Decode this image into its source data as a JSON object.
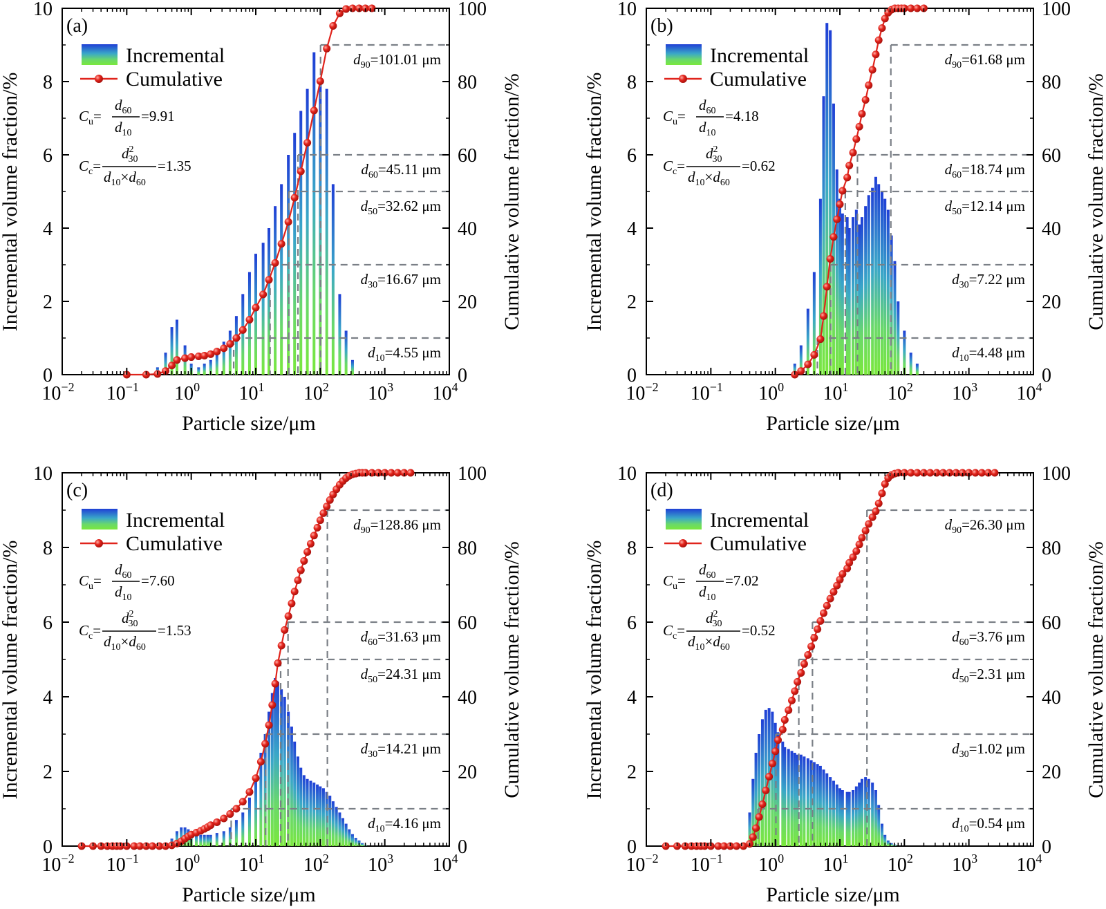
{
  "legend": {
    "incremental": "Incremental",
    "cumulative": "Cumulative"
  },
  "colors": {
    "bar_top": "#2448d8",
    "bar_bottom": "#72e63a",
    "cumulative": "#e0241c",
    "guide": "#7a7f86"
  },
  "axis_labels": {
    "x": "Particle size/μm",
    "y_left": "Incremental volume fraction/%",
    "y_right": "Cumulative volume fraction/%"
  },
  "chart_data": [
    {
      "panel": "(a)",
      "type": "bar+line",
      "xscale": "log",
      "xlim": [
        0.01,
        10000
      ],
      "ylim_left": [
        0,
        10
      ],
      "ylim_right": [
        0,
        100
      ],
      "xticks": [
        "10",
        "10",
        "10",
        "10",
        "10",
        "10",
        "10"
      ],
      "xtick_exps": [
        "−2",
        "−1",
        "0",
        "1",
        "2",
        "3",
        "4"
      ],
      "yticks_left": [
        "0",
        "2",
        "4",
        "6",
        "8",
        "10"
      ],
      "yticks_right": [
        "0",
        "20",
        "40",
        "60",
        "80",
        "100"
      ],
      "x_range_um": [
        0.1,
        700
      ],
      "incremental": {
        "x_um": [
          0.2,
          0.3,
          0.4,
          0.5,
          0.6,
          0.8,
          1.0,
          1.3,
          1.6,
          2.0,
          2.5,
          3.2,
          4.0,
          5.0,
          6.3,
          8.0,
          10,
          13,
          16,
          20,
          25,
          32,
          40,
          50,
          63,
          80,
          100,
          126,
          158,
          200,
          251,
          316
        ],
        "values": [
          0.05,
          0.2,
          0.6,
          1.3,
          1.5,
          0.8,
          0.3,
          0.2,
          0.3,
          0.4,
          0.6,
          0.9,
          1.2,
          1.6,
          2.2,
          2.8,
          3.3,
          3.6,
          4.0,
          4.6,
          5.2,
          6.0,
          6.6,
          7.2,
          7.8,
          8.8,
          8.0,
          7.8,
          5.2,
          2.2,
          1.2,
          0.4
        ]
      },
      "cumulative": {
        "x_um": [
          0.1,
          0.2,
          0.3,
          0.4,
          0.5,
          0.6,
          0.8,
          1.0,
          1.3,
          1.6,
          2.0,
          2.5,
          3.2,
          4.0,
          5.0,
          6.3,
          8.0,
          10,
          13,
          16,
          20,
          25,
          32,
          40,
          50,
          63,
          80,
          100,
          126,
          158,
          200,
          251,
          316,
          400,
          500,
          630
        ],
        "values": [
          0,
          0,
          0.2,
          1.0,
          2.5,
          4.0,
          4.5,
          4.8,
          5.0,
          5.2,
          5.6,
          6.3,
          7.2,
          8.4,
          10.0,
          12.2,
          15.0,
          18.3,
          21.9,
          25.9,
          30.5,
          35.7,
          41.7,
          48.3,
          55.5,
          63.3,
          72.1,
          80.1,
          89.0,
          95.2,
          98.6,
          99.8,
          100,
          100,
          100,
          100
        ]
      },
      "guides": [
        {
          "label_main": "d",
          "label_sub": "90",
          "label_rest": "=101.01 μm",
          "y": 90,
          "x_um": 101.01
        },
        {
          "label_main": "d",
          "label_sub": "60",
          "label_rest": "=45.11 μm",
          "y": 60,
          "x_um": 45.11
        },
        {
          "label_main": "d",
          "label_sub": "50",
          "label_rest": "=32.62 μm",
          "y": 50,
          "x_um": 32.62
        },
        {
          "label_main": "d",
          "label_sub": "30",
          "label_rest": "=16.67 μm",
          "y": 30,
          "x_um": 16.67
        },
        {
          "label_main": "d",
          "label_sub": "10",
          "label_rest": "=4.55 μm",
          "y": 10,
          "x_um": 4.55
        }
      ],
      "cu_value": "=9.91",
      "cc_value": "=1.35"
    },
    {
      "panel": "(b)",
      "type": "bar+line",
      "xscale": "log",
      "xlim": [
        0.01,
        10000
      ],
      "ylim_left": [
        0,
        10
      ],
      "ylim_right": [
        0,
        100
      ],
      "xticks": [
        "10",
        "10",
        "10",
        "10",
        "10",
        "10",
        "10"
      ],
      "xtick_exps": [
        "−2",
        "−1",
        "0",
        "1",
        "2",
        "3",
        "4"
      ],
      "yticks_left": [
        "0",
        "2",
        "4",
        "6",
        "8",
        "10"
      ],
      "yticks_right": [
        "0",
        "20",
        "40",
        "60",
        "80",
        "100"
      ],
      "incremental": {
        "x_um": [
          2.0,
          2.5,
          3.2,
          4.0,
          5.0,
          5.6,
          6.3,
          7.1,
          8.0,
          9.0,
          10,
          11,
          13,
          14,
          16,
          18,
          20,
          22,
          25,
          28,
          32,
          36,
          40,
          45,
          50,
          56,
          63,
          71,
          80,
          100,
          126,
          158
        ],
        "values": [
          0.3,
          0.8,
          1.8,
          2.8,
          4.8,
          7.6,
          9.6,
          9.4,
          7.4,
          5.6,
          4.8,
          4.4,
          4.3,
          4.0,
          4.3,
          4.5,
          4.1,
          4.3,
          4.6,
          4.9,
          5.1,
          5.4,
          5.2,
          5.0,
          4.8,
          4.5,
          3.8,
          3.1,
          2.0,
          1.2,
          0.6,
          0.3
        ]
      },
      "cumulative": {
        "x_um": [
          2.0,
          2.5,
          3.2,
          4.0,
          5.0,
          5.6,
          6.3,
          7.1,
          8.0,
          9.0,
          10,
          11,
          13,
          14,
          16,
          18,
          20,
          22,
          25,
          28,
          32,
          36,
          40,
          45,
          50,
          56,
          63,
          71,
          80,
          90,
          100,
          126,
          158,
          200
        ],
        "values": [
          0,
          1.0,
          2.8,
          5.4,
          9.7,
          16.0,
          24.0,
          31.6,
          37.6,
          42.4,
          46.5,
          50.2,
          53.8,
          57.1,
          60.6,
          64.3,
          67.7,
          71.2,
          75.0,
          79.0,
          83.2,
          87.4,
          91.3,
          94.6,
          97.2,
          98.8,
          99.6,
          100,
          100,
          100,
          100,
          100,
          100,
          100
        ]
      },
      "guides": [
        {
          "label_main": "d",
          "label_sub": "90",
          "label_rest": "=61.68 μm",
          "y": 90,
          "x_um": 61.68
        },
        {
          "label_main": "d",
          "label_sub": "60",
          "label_rest": "=18.74 μm",
          "y": 60,
          "x_um": 18.74
        },
        {
          "label_main": "d",
          "label_sub": "50",
          "label_rest": "=12.14 μm",
          "y": 50,
          "x_um": 12.14
        },
        {
          "label_main": "d",
          "label_sub": "30",
          "label_rest": "=7.22 μm",
          "y": 30,
          "x_um": 7.22
        },
        {
          "label_main": "d",
          "label_sub": "10",
          "label_rest": "=4.48 μm",
          "y": 10,
          "x_um": 4.48
        }
      ],
      "cu_value": "=4.18",
      "cc_value": "=0.62"
    },
    {
      "panel": "(c)",
      "type": "bar+line",
      "xscale": "log",
      "xlim": [
        0.01,
        10000
      ],
      "ylim_left": [
        0,
        10
      ],
      "ylim_right": [
        0,
        100
      ],
      "xticks": [
        "10",
        "10",
        "10",
        "10",
        "10",
        "10",
        "10"
      ],
      "xtick_exps": [
        "−2",
        "−1",
        "0",
        "1",
        "2",
        "3",
        "4"
      ],
      "yticks_left": [
        "0",
        "2",
        "4",
        "6",
        "8",
        "10"
      ],
      "yticks_right": [
        "0",
        "20",
        "40",
        "60",
        "80",
        "100"
      ],
      "incremental": {
        "x_um": [
          0.5,
          0.6,
          0.7,
          0.8,
          0.9,
          1.0,
          1.2,
          1.4,
          1.6,
          1.8,
          2.0,
          2.5,
          3.2,
          4.0,
          5.0,
          6.3,
          8.0,
          10,
          12,
          14,
          16,
          18,
          20,
          22,
          25,
          28,
          32,
          36,
          40,
          45,
          50,
          56,
          63,
          71,
          80,
          90,
          100,
          112,
          126,
          141,
          158,
          178,
          200,
          224,
          251,
          282,
          316,
          355,
          400,
          447,
          501
        ],
        "values": [
          0.2,
          0.4,
          0.5,
          0.5,
          0.45,
          0.4,
          0.35,
          0.3,
          0.3,
          0.3,
          0.3,
          0.35,
          0.4,
          0.5,
          0.7,
          0.9,
          1.3,
          1.9,
          2.5,
          3.0,
          3.6,
          4.1,
          4.5,
          4.4,
          4.2,
          4.0,
          3.6,
          3.2,
          2.8,
          2.4,
          2.1,
          1.9,
          1.8,
          1.75,
          1.7,
          1.65,
          1.6,
          1.55,
          1.45,
          1.35,
          1.2,
          1.05,
          0.9,
          0.75,
          0.6,
          0.45,
          0.32,
          0.22,
          0.15,
          0.08,
          0.03
        ]
      },
      "cumulative": {
        "x_um": [
          0.02,
          0.03,
          0.04,
          0.05,
          0.06,
          0.07,
          0.08,
          0.1,
          0.13,
          0.16,
          0.2,
          0.25,
          0.32,
          0.4,
          0.5,
          0.6,
          0.7,
          0.8,
          0.9,
          1.0,
          1.2,
          1.4,
          1.6,
          1.8,
          2.0,
          2.5,
          3.2,
          4.0,
          5.0,
          6.3,
          8.0,
          10,
          12,
          14,
          16,
          18,
          20,
          22,
          25,
          28,
          32,
          36,
          40,
          45,
          50,
          56,
          63,
          71,
          80,
          90,
          100,
          112,
          126,
          141,
          158,
          178,
          200,
          224,
          251,
          282,
          316,
          355,
          400,
          447,
          501,
          631,
          794,
          1000,
          1259,
          1585,
          1995,
          2512
        ],
        "values": [
          0,
          0,
          0,
          0,
          0,
          0,
          0,
          0,
          0,
          0,
          0,
          0,
          0,
          0,
          0.2,
          0.7,
          1.3,
          2.0,
          2.6,
          3.1,
          3.6,
          4.1,
          4.6,
          5.1,
          5.6,
          6.4,
          7.4,
          8.6,
          10.0,
          11.9,
          14.5,
          18.2,
          22.6,
          27.4,
          32.4,
          37.8,
          43.5,
          49.0,
          53.7,
          57.9,
          61.6,
          65.0,
          68.2,
          71.2,
          73.9,
          76.4,
          78.8,
          81.0,
          83.2,
          85.3,
          87.3,
          89.2,
          91.0,
          92.7,
          94.2,
          95.6,
          96.8,
          97.8,
          98.6,
          99.2,
          99.6,
          99.8,
          100,
          100,
          100,
          100,
          100,
          100,
          100,
          100,
          100,
          100
        ]
      },
      "guides": [
        {
          "label_main": "d",
          "label_sub": "90",
          "label_rest": "=128.86 μm",
          "y": 90,
          "x_um": 128.86
        },
        {
          "label_main": "d",
          "label_sub": "60",
          "label_rest": "=31.63 μm",
          "y": 60,
          "x_um": 31.63
        },
        {
          "label_main": "d",
          "label_sub": "50",
          "label_rest": "=24.31 μm",
          "y": 50,
          "x_um": 24.31
        },
        {
          "label_main": "d",
          "label_sub": "30",
          "label_rest": "=14.21 μm",
          "y": 30,
          "x_um": 14.21
        },
        {
          "label_main": "d",
          "label_sub": "10",
          "label_rest": "=4.16 μm",
          "y": 10,
          "x_um": 4.16
        }
      ],
      "cu_value": "=7.60",
      "cc_value": "=1.53"
    },
    {
      "panel": "(d)",
      "type": "bar+line",
      "xscale": "log",
      "xlim": [
        0.01,
        10000
      ],
      "ylim_left": [
        0,
        10
      ],
      "ylim_right": [
        0,
        100
      ],
      "xticks": [
        "10",
        "10",
        "10",
        "10",
        "10",
        "10",
        "10"
      ],
      "xtick_exps": [
        "−2",
        "−1",
        "0",
        "1",
        "2",
        "3",
        "4"
      ],
      "yticks_left": [
        "0",
        "2",
        "4",
        "6",
        "8",
        "10"
      ],
      "yticks_right": [
        "0",
        "20",
        "40",
        "60",
        "80",
        "100"
      ],
      "incremental": {
        "x_um": [
          0.4,
          0.45,
          0.5,
          0.56,
          0.63,
          0.71,
          0.8,
          0.9,
          1.0,
          1.1,
          1.3,
          1.4,
          1.6,
          1.8,
          2.0,
          2.2,
          2.5,
          2.8,
          3.2,
          3.6,
          4.0,
          4.5,
          5.0,
          5.6,
          6.3,
          7.1,
          8.0,
          9.0,
          10,
          11,
          13,
          14,
          16,
          18,
          20,
          22,
          25,
          28,
          32,
          36,
          40,
          45,
          50,
          56,
          63,
          71
        ],
        "values": [
          0.9,
          1.8,
          2.5,
          3.0,
          3.4,
          3.65,
          3.7,
          3.6,
          3.3,
          3.05,
          2.8,
          2.65,
          2.6,
          2.55,
          2.5,
          2.45,
          2.45,
          2.4,
          2.35,
          2.3,
          2.25,
          2.2,
          2.15,
          2.05,
          1.95,
          1.85,
          1.75,
          1.65,
          1.55,
          1.5,
          1.45,
          1.45,
          1.5,
          1.6,
          1.7,
          1.8,
          1.85,
          1.8,
          1.7,
          1.5,
          1.1,
          0.6,
          0.3,
          0.15,
          0.08,
          0.04
        ]
      },
      "cumulative": {
        "x_um": [
          0.02,
          0.03,
          0.04,
          0.05,
          0.06,
          0.07,
          0.08,
          0.1,
          0.13,
          0.16,
          0.2,
          0.25,
          0.32,
          0.4,
          0.45,
          0.5,
          0.56,
          0.63,
          0.71,
          0.8,
          0.9,
          1.0,
          1.1,
          1.3,
          1.4,
          1.6,
          1.8,
          2.0,
          2.2,
          2.5,
          2.8,
          3.2,
          3.6,
          4.0,
          4.5,
          5.0,
          5.6,
          6.3,
          7.1,
          8.0,
          9.0,
          10,
          11,
          13,
          14,
          16,
          18,
          20,
          22,
          25,
          28,
          32,
          36,
          40,
          45,
          50,
          56,
          63,
          71,
          80,
          100,
          126,
          158,
          200,
          251,
          316,
          398,
          501,
          631,
          794,
          1000,
          1259,
          1585,
          1995,
          2512
        ],
        "values": [
          0,
          0,
          0,
          0,
          0,
          0,
          0,
          0,
          0,
          0,
          0,
          0,
          0,
          0.6,
          2.4,
          4.8,
          7.8,
          11.2,
          14.9,
          18.6,
          22.1,
          25.4,
          28.4,
          31.2,
          33.8,
          36.4,
          39.0,
          41.5,
          44.0,
          46.4,
          48.8,
          51.2,
          53.5,
          55.8,
          58.1,
          60.3,
          62.4,
          64.4,
          66.3,
          68.1,
          69.8,
          71.4,
          72.9,
          74.4,
          75.9,
          77.4,
          79.0,
          80.8,
          82.6,
          84.5,
          86.3,
          88.1,
          89.7,
          91.8,
          94.5,
          97.0,
          98.6,
          99.4,
          99.8,
          100,
          100,
          100,
          100,
          100,
          100,
          100,
          100,
          100,
          100,
          100,
          100,
          100,
          100,
          100,
          100
        ]
      },
      "guides": [
        {
          "label_main": "d",
          "label_sub": "90",
          "label_rest": "=26.30 μm",
          "y": 90,
          "x_um": 26.3
        },
        {
          "label_main": "d",
          "label_sub": "60",
          "label_rest": "=3.76 μm",
          "y": 60,
          "x_um": 3.76
        },
        {
          "label_main": "d",
          "label_sub": "50",
          "label_rest": "=2.31 μm",
          "y": 50,
          "x_um": 2.31
        },
        {
          "label_main": "d",
          "label_sub": "30",
          "label_rest": "=1.02 μm",
          "y": 30,
          "x_um": 1.02
        },
        {
          "label_main": "d",
          "label_sub": "10",
          "label_rest": "=0.54 μm",
          "y": 10,
          "x_um": 0.54
        }
      ],
      "cu_value": "=7.02",
      "cc_value": "=0.52"
    }
  ]
}
